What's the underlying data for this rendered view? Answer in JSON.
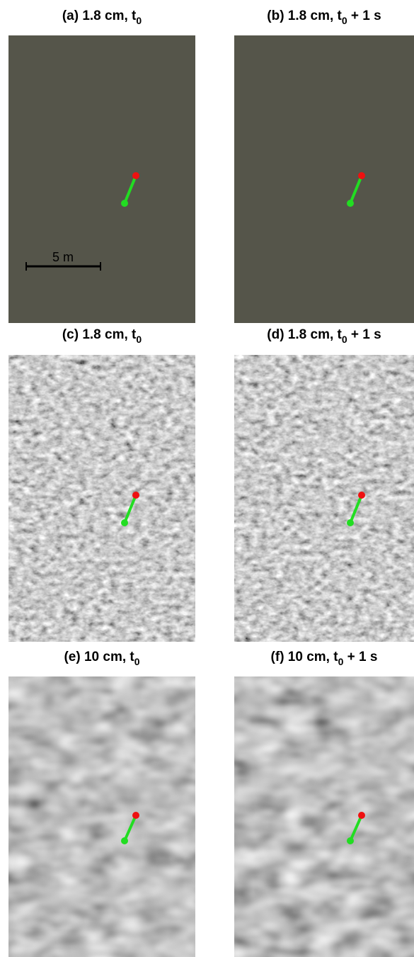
{
  "panels": [
    {
      "title": {
        "prefix": "(a) 1.8 cm, t",
        "sub": "0"
      }
    },
    {
      "title": {
        "prefix": "(b) 1.8 cm, t",
        "sub": "0",
        "suffix": " + 1 s"
      }
    },
    {
      "title": {
        "prefix": "(c) 1.8 cm, t",
        "sub": "0"
      }
    },
    {
      "title": {
        "prefix": "(d) 1.8 cm, t",
        "sub": "0",
        "suffix": " + 1 s"
      }
    },
    {
      "title": {
        "prefix": "(e) 10 cm, t",
        "sub": "0"
      }
    },
    {
      "title": {
        "prefix": "(f) 10 cm, t",
        "sub": "0",
        "suffix": " + 1 s"
      }
    }
  ],
  "scale_bar": {
    "label": "5 m"
  }
}
